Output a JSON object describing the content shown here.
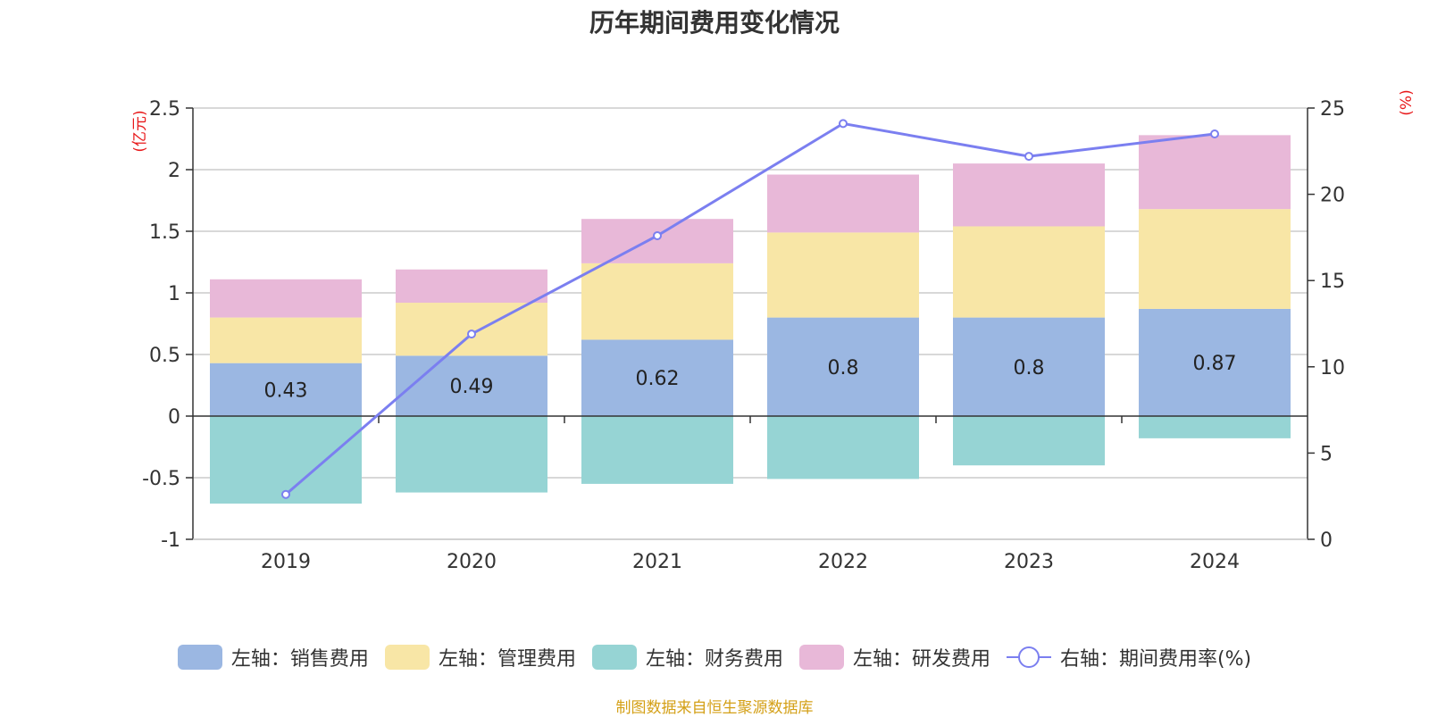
{
  "chart_data": {
    "type": "bar",
    "title": "历年期间费用变化情况",
    "categories": [
      "2019",
      "2020",
      "2021",
      "2022",
      "2023",
      "2024"
    ],
    "left_axis": {
      "unit_label": "(亿元)",
      "ylim": [
        -1,
        2.5
      ],
      "ticks": [
        "2.5",
        "2",
        "1.5",
        "1",
        "0.5",
        "0",
        "-0.5",
        "-1"
      ]
    },
    "right_axis": {
      "unit_label": "(%)",
      "ylim": [
        0,
        25
      ],
      "ticks": [
        "25",
        "20",
        "15",
        "10",
        "5",
        "0"
      ]
    },
    "series": [
      {
        "name": "左轴：销售费用",
        "axis": "left",
        "color": "#9bb7e2",
        "values": [
          0.43,
          0.49,
          0.62,
          0.8,
          0.8,
          0.87
        ],
        "labels": [
          "0.43",
          "0.49",
          "0.62",
          "0.8",
          "0.8",
          "0.87"
        ]
      },
      {
        "name": "左轴：管理费用",
        "axis": "left",
        "color": "#f8e6a6",
        "values": [
          0.37,
          0.43,
          0.62,
          0.69,
          0.74,
          0.81
        ]
      },
      {
        "name": "左轴：财务费用",
        "axis": "left",
        "color": "#96d4d4",
        "values": [
          -0.71,
          -0.62,
          -0.55,
          -0.51,
          -0.4,
          -0.18
        ]
      },
      {
        "name": "左轴：研发费用",
        "axis": "left",
        "color": "#e8b8d8",
        "values": [
          0.31,
          0.27,
          0.36,
          0.47,
          0.51,
          0.6
        ]
      },
      {
        "name": "右轴：期间费用率(%)",
        "axis": "right",
        "type": "line",
        "color": "#7b7ff0",
        "values": [
          2.6,
          11.9,
          17.6,
          24.1,
          22.2,
          23.5
        ]
      }
    ],
    "grid": true,
    "legend_position": "bottom"
  },
  "source_note": "制图数据来自恒生聚源数据库"
}
